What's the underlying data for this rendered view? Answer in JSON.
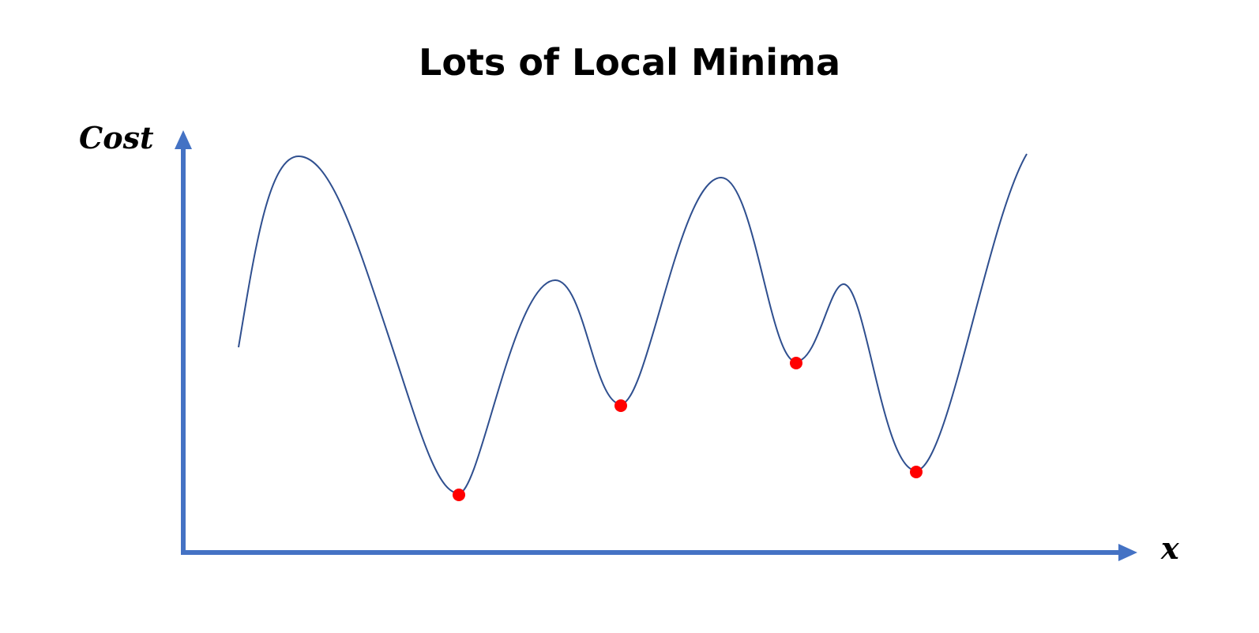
{
  "title": "Lots of Local Minima",
  "y_axis_label": "Cost",
  "x_axis_label": "x",
  "colors": {
    "axis": "#4472C4",
    "curve": "#2F4F8F",
    "minima": "#FF0000",
    "text": "#000000"
  },
  "local_minima_count": 4
}
